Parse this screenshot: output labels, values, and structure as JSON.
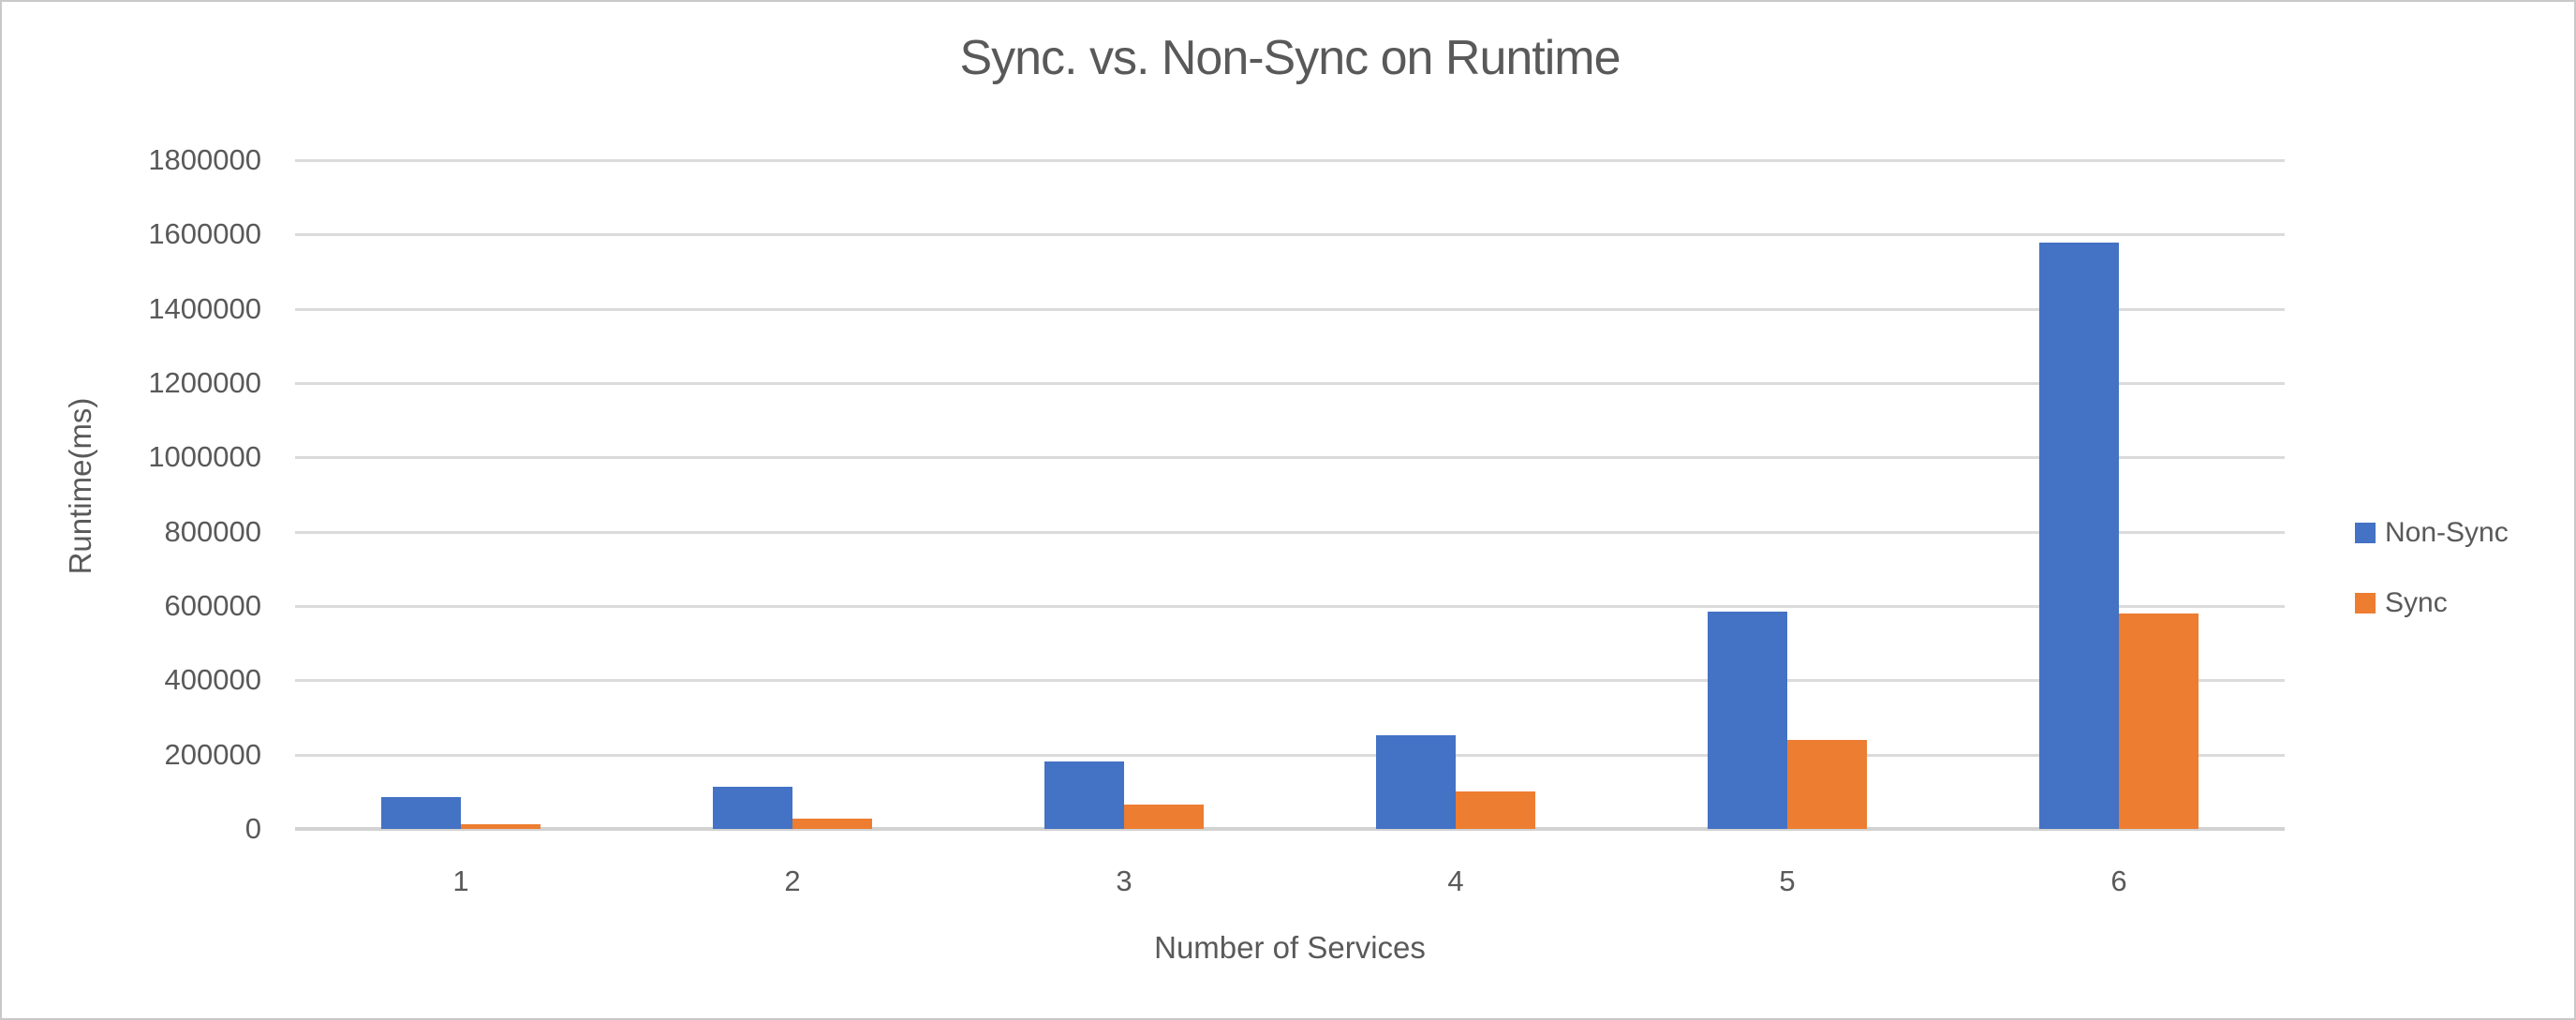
{
  "window": {
    "background": "#FFFFFF",
    "border_color": "#C9C9C9"
  },
  "chart_data": {
    "type": "bar",
    "title": "Sync. vs. Non-Sync on Runtime",
    "xlabel": "Number of Services",
    "ylabel": "Runtime(ms)",
    "categories": [
      "1",
      "2",
      "3",
      "4",
      "5",
      "6"
    ],
    "series": [
      {
        "name": "Non-Sync",
        "color": "#4472C4",
        "values": [
          86000,
          113000,
          181000,
          251000,
          586000,
          1578000
        ]
      },
      {
        "name": "Sync",
        "color": "#ED7D31",
        "values": [
          12000,
          27000,
          65000,
          101000,
          240000,
          581000
        ]
      }
    ],
    "ylim": [
      0,
      1800000
    ],
    "ytick_step": 200000,
    "ytick_labels": [
      "0",
      "200000",
      "400000",
      "600000",
      "800000",
      "1000000",
      "1200000",
      "1400000",
      "1600000",
      "1800000"
    ],
    "grid": true,
    "legend_position": "right",
    "text_color": "#595959",
    "gridline_color": "#DBDBDB",
    "axisline_color": "#D2D2D2"
  }
}
